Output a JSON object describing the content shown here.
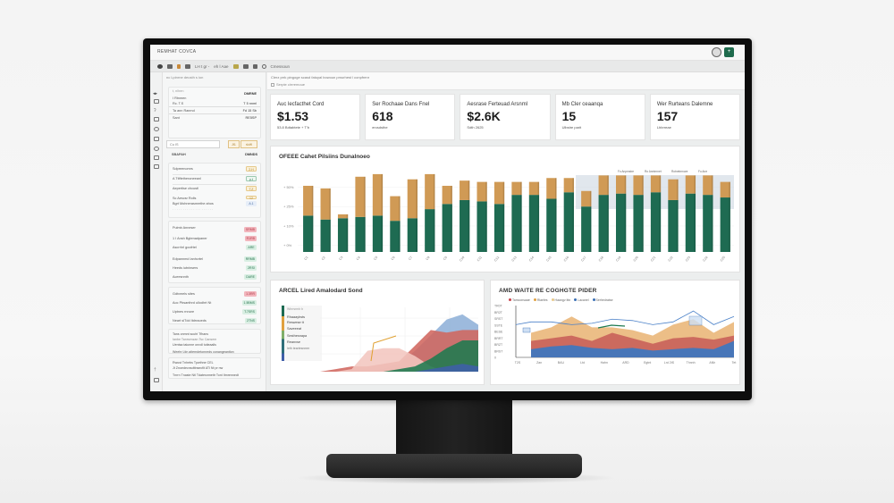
{
  "app": {
    "title": "REMHAT COVCA",
    "toolbar": {
      "text_1": "LH t gr -",
      "text_2": "eh l Aae",
      "search_label": "Cmessoun"
    },
    "profile_label": "",
    "action_button_icon": "+"
  },
  "filter_bar": {
    "description": "Clerz prrk pingoge scasd fatuyal bowoun pmurhest l conpfrenr",
    "checkbox_label": "Serpte cirrremoue"
  },
  "sidebar": {
    "header": "nc Lpinrne deusth s ion",
    "top_card": {
      "title": "t, nlhen",
      "title_value": "DMRNE",
      "rows": [
        {
          "label": "I Rtnmen",
          "value": ""
        },
        {
          "label": "Rc. T.S",
          "value": "T 5 nnml"
        },
        {
          "label": "Ta ann Ranmd",
          "value": "Fd 15 Sb"
        },
        {
          "label": "Sant",
          "value": "RE5SP"
        }
      ],
      "input_value": "Cu IS",
      "btn_1": "Jf1",
      "btn_2": "rIzW",
      "total_label": "SBAPAH",
      "total_value": "DMNDS"
    },
    "list_1": [
      {
        "label": "Sdpreenomrs",
        "pill": "2.H",
        "pill_style": "amber"
      },
      {
        "label": "A Ttlftetheroneeanl",
        "pill": "p.t",
        "pill_style": "green-o"
      },
      {
        "label": "Aepertise chcustl",
        "pill": "T.Z",
        "pill_style": "amber"
      },
      {
        "label": "Sc Aescsr Rolls",
        "pill": "12",
        "pill_style": "amber"
      },
      {
        "label": "Bgrt Mohnerasmmthe ahos",
        "pill": "A.1",
        "pill_style": "blue"
      }
    ],
    "list_2": [
      {
        "label": "Pulmb Anneser",
        "pill": "SRMB",
        "pill_style": "red"
      },
      {
        "label": "1 I Ansh Bgtenadpaner",
        "pill": "R1RB",
        "pill_style": "red"
      },
      {
        "label": "Ascrrhrl goofrtel",
        "pill": "ARE",
        "pill_style": "green"
      },
      {
        "label": "Edpannmd Ianhcrtel",
        "pill": "RRMB",
        "pill_style": "green"
      },
      {
        "label": "Heeds iutninsers",
        "pill": "2RSI",
        "pill_style": "green"
      },
      {
        "label": "Aceesnnth",
        "pill": "DARE",
        "pill_style": "green"
      }
    ],
    "list_3": [
      {
        "label": "Gdtvmels sites",
        "pill": "1.3RR",
        "pill_style": "red"
      },
      {
        "label": "Aoc Pbsanthrd ullodhrt Nt",
        "pill": "1.5BMS",
        "pill_style": "green"
      },
      {
        "label": "Uptnes rnnore",
        "pill": "T.7SRS",
        "pill_style": "green"
      },
      {
        "label": "Neart slTdd Itdrraoeds",
        "pill": "2TNS",
        "pill_style": "green"
      }
    ],
    "notes_1": [
      "Tans onmnt scuht Tfhans",
      "Ianbe Tanrsenzan Tsc Cansem",
      "Uentsa taiunne onvdl tutieaalls",
      "Weehr Ltin aiterndetonneds conangeantlon"
    ],
    "notes_2": [
      "Rwust Tnhebs Tpwthne CEL",
      "Jt Znoedecnsdttnsecflt ATl Nt pr nw",
      "Tnrrn Tnaste Ntl Tdatesnmettr Tont Itmrennedt"
    ]
  },
  "kpis": [
    {
      "label": "Auc lecfacthet Cord",
      "value": "$1.53",
      "sub": "53.8 Bdtabtete  +  T'b"
    },
    {
      "label": "Ser Rochaae Dans Fnel",
      "value": "618",
      "sub": "ercsdsthe"
    },
    {
      "label": "Aesrase Ferteuad Arsnml",
      "value": "$2.6K",
      "sub": "Sdth 2625"
    },
    {
      "label": "Mb Cler ceaanqa",
      "value": "15",
      "sub": "Ulbstre parit"
    },
    {
      "label": "Wer Rurteans Dalemne",
      "value": "157",
      "sub": "Lhbrreae"
    }
  ],
  "bar_panel": {
    "title": "OFEEE Cahet Pilsiins Dunalnoeo",
    "annotations": [
      "Fo Anpmstre",
      "Ro Anntrnnet",
      "Rotnetmnore",
      "Fo Ane"
    ]
  },
  "area_panel_left": {
    "title": "ARCEL Lired Amalodard Sond",
    "legend": [
      "Wtnrsrmb b",
      "Rhaaayhsts",
      "Reswese tt",
      "Saveeeat",
      "Sesthesnapa",
      "Reanvse",
      "Ieth tearlesnmer"
    ]
  },
  "area_panel_right": {
    "title": "AMD WAITE RE COGHGTE PIDER",
    "legend": [
      {
        "label": "Tamconsaae",
        "color": "#c9434a"
      },
      {
        "label": "Rlaeles",
        "color": "#e0a040"
      },
      {
        "label": "Haangv ittn",
        "color": "#e8c88a"
      },
      {
        "label": "Lacanel",
        "color": "#3a6fb5"
      },
      {
        "label": "Serhedratse",
        "color": "#3a6fb5"
      }
    ],
    "y_ticks": [
      "TR0T",
      "BR2T",
      "SRST",
      "SSTE",
      "BESE",
      "BRRT",
      "BRZT",
      "BRST",
      "0"
    ],
    "x_ticks": [
      "T2S",
      "Zan",
      "BAU",
      "Ltd",
      "Hahn",
      "ARD",
      "Egtnt",
      "Lrd 2tS",
      "Thnnh",
      "ANh",
      "Tet"
    ]
  },
  "chart_data": [
    {
      "type": "bar",
      "title": "OFEEE Cahet Pilsiins Dunalnoeo",
      "stacked": true,
      "y_ticks": [
        "50%",
        "25%",
        "10%",
        "0%"
      ],
      "categories": [
        "C1",
        "C2",
        "C3",
        "C4",
        "C5",
        "C6",
        "C7",
        "C8",
        "C9",
        "C10",
        "C11",
        "C12",
        "C13",
        "C14",
        "C15",
        "C16",
        "C17",
        "C18",
        "C19",
        "C20",
        "C21",
        "C22",
        "C23",
        "C24",
        "C25"
      ],
      "series": [
        {
          "name": "Green (base)",
          "color": "#1e6b52",
          "values": [
            28,
            25,
            26,
            27,
            28,
            24,
            26,
            33,
            37,
            40,
            39,
            37,
            44,
            44,
            41,
            46,
            35,
            44,
            45,
            44,
            46,
            40,
            45,
            44,
            42
          ]
        },
        {
          "name": "Amber (top)",
          "color": "#d09a55",
          "values": [
            23,
            24,
            3,
            31,
            32,
            19,
            30,
            27,
            14,
            15,
            15,
            17,
            10,
            10,
            16,
            11,
            12,
            15,
            14,
            15,
            13,
            16,
            14,
            15,
            12
          ]
        }
      ],
      "highlighted_range": [
        16,
        24
      ]
    },
    {
      "type": "area",
      "title": "ARCEL Lired Amalodard Sond",
      "x": [
        0,
        1,
        2,
        3,
        4,
        5,
        6,
        7,
        8,
        9,
        10
      ],
      "series": [
        {
          "name": "Blue",
          "color": "#8fb0d8",
          "values": [
            0,
            0,
            0,
            0,
            1,
            3,
            8,
            14,
            20,
            22,
            18
          ]
        },
        {
          "name": "Red",
          "color": "#d0675f",
          "values": [
            0,
            1,
            2,
            2,
            3,
            4,
            10,
            16,
            15,
            16,
            16
          ]
        },
        {
          "name": "Peach",
          "color": "#f2c6bf",
          "values": [
            0,
            0,
            1,
            8,
            9,
            9,
            6,
            2,
            0,
            0,
            0
          ]
        },
        {
          "name": "Green",
          "color": "#1e7a50",
          "values": [
            0,
            0,
            0,
            0,
            0,
            1,
            2,
            5,
            9,
            12,
            12
          ]
        },
        {
          "name": "Navy",
          "color": "#3f5ea8",
          "values": [
            0,
            0,
            0,
            0,
            0,
            0,
            0,
            1,
            2,
            3,
            2
          ]
        }
      ]
    },
    {
      "type": "area",
      "title": "AMD WAITE RE COGHGTE PIDER",
      "x": [
        "T2S",
        "Zan",
        "BAU",
        "Ltd",
        "Hahn",
        "ARD",
        "Egtnt",
        "Lrd 2tS",
        "Thnnh",
        "ANh",
        "Tet"
      ],
      "series": [
        {
          "name": "Lacanel",
          "color": "#3a78c2",
          "values": [
            6,
            8,
            9,
            7,
            6,
            7,
            5,
            6,
            7,
            6,
            12
          ]
        },
        {
          "name": "Tamconsaae",
          "color": "#c9605a",
          "values": [
            12,
            14,
            16,
            12,
            18,
            14,
            10,
            14,
            15,
            13,
            16
          ]
        },
        {
          "name": "Rlaeles",
          "color": "#eab77a",
          "values": [
            18,
            22,
            30,
            22,
            22,
            20,
            16,
            24,
            28,
            18,
            26
          ]
        },
        {
          "name": "Serhedratse",
          "color": "#4a80c8",
          "values": [
            26,
            26,
            24,
            25,
            28,
            27,
            24,
            26,
            34,
            24,
            30
          ]
        }
      ]
    }
  ]
}
